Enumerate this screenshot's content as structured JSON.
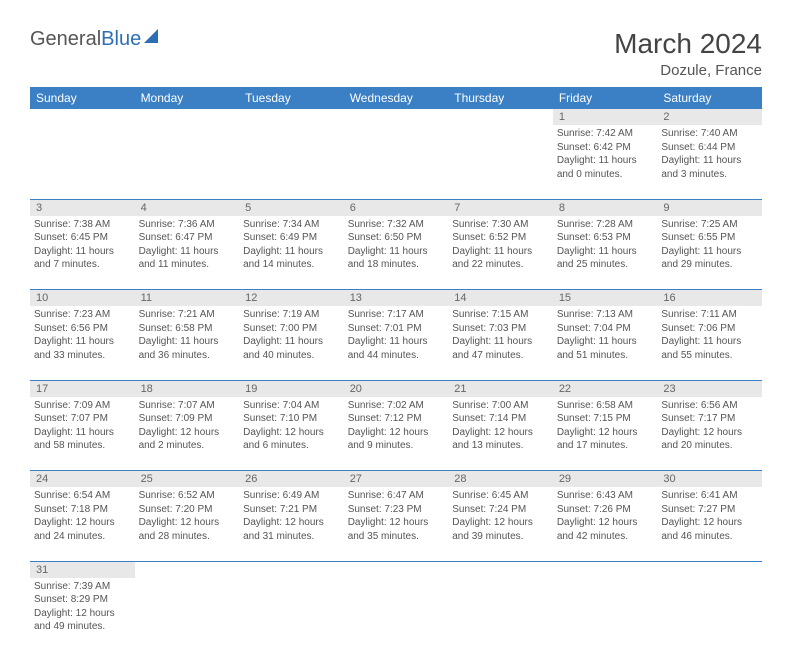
{
  "logo": {
    "part1": "General",
    "part2": "Blue"
  },
  "title": "March 2024",
  "location": "Dozule, France",
  "dayHeaders": [
    "Sunday",
    "Monday",
    "Tuesday",
    "Wednesday",
    "Thursday",
    "Friday",
    "Saturday"
  ],
  "colors": {
    "headerBg": "#3b7fc4",
    "headerText": "#ffffff",
    "dayNumBg": "#e8e8e8",
    "rowBorder": "#3b7fc4",
    "bodyText": "#555555"
  },
  "weeks": [
    [
      null,
      null,
      null,
      null,
      null,
      {
        "n": "1",
        "sr": "Sunrise: 7:42 AM",
        "ss": "Sunset: 6:42 PM",
        "d1": "Daylight: 11 hours",
        "d2": "and 0 minutes."
      },
      {
        "n": "2",
        "sr": "Sunrise: 7:40 AM",
        "ss": "Sunset: 6:44 PM",
        "d1": "Daylight: 11 hours",
        "d2": "and 3 minutes."
      }
    ],
    [
      {
        "n": "3",
        "sr": "Sunrise: 7:38 AM",
        "ss": "Sunset: 6:45 PM",
        "d1": "Daylight: 11 hours",
        "d2": "and 7 minutes."
      },
      {
        "n": "4",
        "sr": "Sunrise: 7:36 AM",
        "ss": "Sunset: 6:47 PM",
        "d1": "Daylight: 11 hours",
        "d2": "and 11 minutes."
      },
      {
        "n": "5",
        "sr": "Sunrise: 7:34 AM",
        "ss": "Sunset: 6:49 PM",
        "d1": "Daylight: 11 hours",
        "d2": "and 14 minutes."
      },
      {
        "n": "6",
        "sr": "Sunrise: 7:32 AM",
        "ss": "Sunset: 6:50 PM",
        "d1": "Daylight: 11 hours",
        "d2": "and 18 minutes."
      },
      {
        "n": "7",
        "sr": "Sunrise: 7:30 AM",
        "ss": "Sunset: 6:52 PM",
        "d1": "Daylight: 11 hours",
        "d2": "and 22 minutes."
      },
      {
        "n": "8",
        "sr": "Sunrise: 7:28 AM",
        "ss": "Sunset: 6:53 PM",
        "d1": "Daylight: 11 hours",
        "d2": "and 25 minutes."
      },
      {
        "n": "9",
        "sr": "Sunrise: 7:25 AM",
        "ss": "Sunset: 6:55 PM",
        "d1": "Daylight: 11 hours",
        "d2": "and 29 minutes."
      }
    ],
    [
      {
        "n": "10",
        "sr": "Sunrise: 7:23 AM",
        "ss": "Sunset: 6:56 PM",
        "d1": "Daylight: 11 hours",
        "d2": "and 33 minutes."
      },
      {
        "n": "11",
        "sr": "Sunrise: 7:21 AM",
        "ss": "Sunset: 6:58 PM",
        "d1": "Daylight: 11 hours",
        "d2": "and 36 minutes."
      },
      {
        "n": "12",
        "sr": "Sunrise: 7:19 AM",
        "ss": "Sunset: 7:00 PM",
        "d1": "Daylight: 11 hours",
        "d2": "and 40 minutes."
      },
      {
        "n": "13",
        "sr": "Sunrise: 7:17 AM",
        "ss": "Sunset: 7:01 PM",
        "d1": "Daylight: 11 hours",
        "d2": "and 44 minutes."
      },
      {
        "n": "14",
        "sr": "Sunrise: 7:15 AM",
        "ss": "Sunset: 7:03 PM",
        "d1": "Daylight: 11 hours",
        "d2": "and 47 minutes."
      },
      {
        "n": "15",
        "sr": "Sunrise: 7:13 AM",
        "ss": "Sunset: 7:04 PM",
        "d1": "Daylight: 11 hours",
        "d2": "and 51 minutes."
      },
      {
        "n": "16",
        "sr": "Sunrise: 7:11 AM",
        "ss": "Sunset: 7:06 PM",
        "d1": "Daylight: 11 hours",
        "d2": "and 55 minutes."
      }
    ],
    [
      {
        "n": "17",
        "sr": "Sunrise: 7:09 AM",
        "ss": "Sunset: 7:07 PM",
        "d1": "Daylight: 11 hours",
        "d2": "and 58 minutes."
      },
      {
        "n": "18",
        "sr": "Sunrise: 7:07 AM",
        "ss": "Sunset: 7:09 PM",
        "d1": "Daylight: 12 hours",
        "d2": "and 2 minutes."
      },
      {
        "n": "19",
        "sr": "Sunrise: 7:04 AM",
        "ss": "Sunset: 7:10 PM",
        "d1": "Daylight: 12 hours",
        "d2": "and 6 minutes."
      },
      {
        "n": "20",
        "sr": "Sunrise: 7:02 AM",
        "ss": "Sunset: 7:12 PM",
        "d1": "Daylight: 12 hours",
        "d2": "and 9 minutes."
      },
      {
        "n": "21",
        "sr": "Sunrise: 7:00 AM",
        "ss": "Sunset: 7:14 PM",
        "d1": "Daylight: 12 hours",
        "d2": "and 13 minutes."
      },
      {
        "n": "22",
        "sr": "Sunrise: 6:58 AM",
        "ss": "Sunset: 7:15 PM",
        "d1": "Daylight: 12 hours",
        "d2": "and 17 minutes."
      },
      {
        "n": "23",
        "sr": "Sunrise: 6:56 AM",
        "ss": "Sunset: 7:17 PM",
        "d1": "Daylight: 12 hours",
        "d2": "and 20 minutes."
      }
    ],
    [
      {
        "n": "24",
        "sr": "Sunrise: 6:54 AM",
        "ss": "Sunset: 7:18 PM",
        "d1": "Daylight: 12 hours",
        "d2": "and 24 minutes."
      },
      {
        "n": "25",
        "sr": "Sunrise: 6:52 AM",
        "ss": "Sunset: 7:20 PM",
        "d1": "Daylight: 12 hours",
        "d2": "and 28 minutes."
      },
      {
        "n": "26",
        "sr": "Sunrise: 6:49 AM",
        "ss": "Sunset: 7:21 PM",
        "d1": "Daylight: 12 hours",
        "d2": "and 31 minutes."
      },
      {
        "n": "27",
        "sr": "Sunrise: 6:47 AM",
        "ss": "Sunset: 7:23 PM",
        "d1": "Daylight: 12 hours",
        "d2": "and 35 minutes."
      },
      {
        "n": "28",
        "sr": "Sunrise: 6:45 AM",
        "ss": "Sunset: 7:24 PM",
        "d1": "Daylight: 12 hours",
        "d2": "and 39 minutes."
      },
      {
        "n": "29",
        "sr": "Sunrise: 6:43 AM",
        "ss": "Sunset: 7:26 PM",
        "d1": "Daylight: 12 hours",
        "d2": "and 42 minutes."
      },
      {
        "n": "30",
        "sr": "Sunrise: 6:41 AM",
        "ss": "Sunset: 7:27 PM",
        "d1": "Daylight: 12 hours",
        "d2": "and 46 minutes."
      }
    ],
    [
      {
        "n": "31",
        "sr": "Sunrise: 7:39 AM",
        "ss": "Sunset: 8:29 PM",
        "d1": "Daylight: 12 hours",
        "d2": "and 49 minutes."
      },
      null,
      null,
      null,
      null,
      null,
      null
    ]
  ]
}
